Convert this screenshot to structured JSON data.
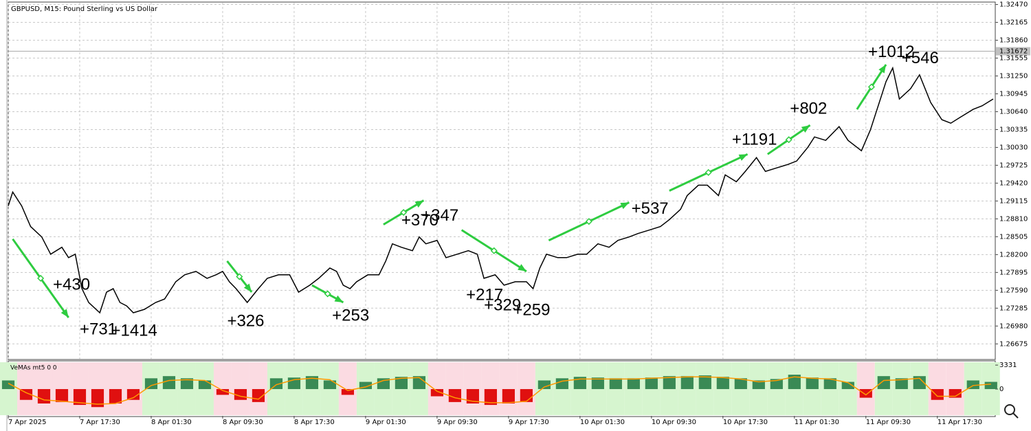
{
  "chart_data": [
    {
      "type": "line",
      "title": "GBPUSD, M15:  Pound Sterling vs US Dollar",
      "x": [
        0,
        2,
        6,
        10,
        15,
        19,
        24,
        27,
        30,
        33,
        36,
        41,
        44,
        47,
        50,
        53,
        56,
        61,
        66,
        70,
        75,
        79,
        84,
        89,
        93,
        96,
        99,
        102,
        107,
        112,
        116,
        121,
        126,
        130,
        135,
        139,
        144,
        147,
        150,
        153,
        156,
        161,
        166,
        169,
        172,
        176,
        181,
        184,
        187,
        192,
        196,
        201,
        206,
        210,
        213,
        218,
        222,
        227,
        232,
        235,
        238,
        241,
        246,
        250,
        255,
        259,
        264,
        269,
        273,
        278,
        282,
        287,
        292,
        296,
        301,
        304,
        309,
        313,
        318,
        321,
        326,
        330,
        335,
        339,
        344,
        349,
        353,
        358,
        361,
        366,
        372,
        376,
        382,
        386,
        390,
        393,
        396,
        399,
        404,
        408,
        413,
        418,
        422,
        427,
        432,
        436,
        441
      ],
      "values": [
        1.29031,
        1.29267,
        1.29031,
        1.28678,
        1.28501,
        1.28207,
        1.28325,
        1.28148,
        1.28207,
        1.27618,
        1.27383,
        1.27206,
        1.27559,
        1.27618,
        1.27383,
        1.27324,
        1.27206,
        1.27265,
        1.27383,
        1.27441,
        1.27736,
        1.27854,
        1.27913,
        1.27795,
        1.27854,
        1.27913,
        1.27736,
        1.27618,
        1.27383,
        1.27618,
        1.27795,
        1.27854,
        1.27854,
        1.27559,
        1.27677,
        1.27795,
        1.27971,
        1.27913,
        1.27677,
        1.27618,
        1.27736,
        1.27854,
        1.27854,
        1.28089,
        1.28384,
        1.28325,
        1.28266,
        1.28501,
        1.28384,
        1.28442,
        1.28148,
        1.28207,
        1.28266,
        1.28207,
        1.27795,
        1.27854,
        1.27677,
        1.27736,
        1.27736,
        1.27618,
        1.27971,
        1.28207,
        1.28148,
        1.28148,
        1.28207,
        1.28207,
        1.28384,
        1.28325,
        1.28442,
        1.28501,
        1.2856,
        1.28619,
        1.28678,
        1.28796,
        1.28972,
        1.29208,
        1.29385,
        1.29385,
        1.29208,
        1.29561,
        1.29443,
        1.2962,
        1.29856,
        1.2962,
        1.29679,
        1.29738,
        1.29797,
        1.30032,
        1.30209,
        1.3015,
        1.30385,
        1.3015,
        1.29973,
        1.30327,
        1.30798,
        1.31151,
        1.31386,
        1.30857,
        1.31033,
        1.31269,
        1.30798,
        1.30503,
        1.30444,
        1.30562,
        1.3068,
        1.30739,
        1.30857
      ],
      "color": "#000000",
      "xlim": [
        0,
        441
      ],
      "ylim": [
        1.2642,
        1.325
      ],
      "yticks": [
        {
          "value": 1.3247,
          "label": "1.32470"
        },
        1.32165,
        {
          "value": 1.3186,
          "label": "1.31860"
        },
        1.31555,
        {
          "value": 1.3125,
          "label": "1.31250"
        },
        1.30945,
        {
          "value": 1.3064,
          "label": "1.30640"
        },
        1.30335,
        {
          "value": 1.3003,
          "label": "1.30030"
        },
        1.29725,
        {
          "value": 1.2942,
          "label": "1.29420"
        },
        1.29115,
        {
          "value": 1.2881,
          "label": "1.28810"
        },
        1.28505,
        {
          "value": 1.282,
          "label": "1.28200"
        },
        1.27895,
        {
          "value": 1.2759,
          "label": "1.27590"
        },
        1.27285,
        {
          "value": 1.2698,
          "label": "1.26980"
        },
        1.26675
      ],
      "grid": true,
      "current_price": 1.31672,
      "annotation_color": "#2ecc40",
      "annotations": [
        {
          "text": "+430",
          "x": 20,
          "y": 1.27677
        },
        {
          "text": "+731",
          "x": 32,
          "y": 1.26912
        },
        {
          "text": "+1414",
          "x": 46,
          "y": 1.26888
        },
        {
          "text": "+326",
          "x": 98,
          "y": 1.27053
        },
        {
          "text": "+253",
          "x": 145,
          "y": 1.27147
        },
        {
          "text": "+370",
          "x": 176,
          "y": 1.28772
        },
        {
          "text": "+347",
          "x": 185,
          "y": 1.28855
        },
        {
          "text": "+217",
          "x": 205,
          "y": 1.275
        },
        {
          "text": "+329",
          "x": 213,
          "y": 1.27324
        },
        {
          "text": "+259",
          "x": 226,
          "y": 1.27241
        },
        {
          "text": "+537",
          "x": 279,
          "y": 1.28972
        },
        {
          "text": "+1191",
          "x": 324,
          "y": 1.3015
        },
        {
          "text": "+802",
          "x": 350,
          "y": 1.3068
        },
        {
          "text": "+1012",
          "x": 385,
          "y": 1.31646
        },
        {
          "text": "+546",
          "x": 400,
          "y": 1.3154
        }
      ],
      "arrows": [
        {
          "x1": 2,
          "y1": 1.28466,
          "x2": 27,
          "y2": 1.27124
        },
        {
          "x1": 98,
          "y1": 1.28089,
          "x2": 109,
          "y2": 1.27559
        },
        {
          "x1": 136,
          "y1": 1.27677,
          "x2": 150,
          "y2": 1.27383
        },
        {
          "x1": 168,
          "y1": 1.28713,
          "x2": 186,
          "y2": 1.29125
        },
        {
          "x1": 203,
          "y1": 1.28619,
          "x2": 232,
          "y2": 1.27913
        },
        {
          "x1": 242,
          "y1": 1.28442,
          "x2": 278,
          "y2": 1.2909
        },
        {
          "x1": 296,
          "y1": 1.2929,
          "x2": 331,
          "y2": 1.29914
        },
        {
          "x1": 340,
          "y1": 1.29914,
          "x2": 359,
          "y2": 1.30409
        },
        {
          "x1": 380,
          "y1": 1.3068,
          "x2": 393,
          "y2": 1.31445
        }
      ]
    },
    {
      "type": "bar",
      "title": "VeMAs mt5 0 0",
      "x": [
        0,
        8,
        16,
        24,
        32,
        40,
        48,
        56,
        64,
        72,
        80,
        88,
        96,
        104,
        112,
        120,
        128,
        136,
        144,
        152,
        160,
        168,
        176,
        184,
        192,
        200,
        208,
        216,
        224,
        232,
        240,
        248,
        256,
        264,
        272,
        280,
        288,
        296,
        304,
        312,
        320,
        328,
        336,
        344,
        352,
        360,
        368,
        376,
        384,
        392,
        400,
        408,
        416,
        424,
        432,
        440
      ],
      "series": [
        {
          "values": [
            1200,
            -1500,
            -2000,
            -1800,
            -2200,
            -2500,
            -2000,
            -1500,
            1500,
            1800,
            1500,
            1200,
            -800,
            -1500,
            -1800,
            1500,
            1600,
            1800,
            1200,
            -800,
            1000,
            1500,
            1700,
            1800,
            -1000,
            -1800,
            -2000,
            -2200,
            -2000,
            -1800,
            1200,
            1500,
            1700,
            1600,
            1500,
            1500,
            1600,
            1800,
            1800,
            1900,
            1700,
            1500,
            1200,
            1400,
            2000,
            1600,
            1500,
            1000,
            -1200,
            1800,
            1500,
            1800,
            -1500,
            -1200,
            1200,
            1000
          ],
          "color": "#3a8a55",
          "negative_color": "#e01010"
        },
        {
          "values": [
            800,
            -500,
            -1500,
            -1700,
            -1900,
            -2100,
            -2000,
            -1200,
            500,
            1200,
            1300,
            1200,
            -200,
            -1000,
            -1400,
            600,
            1300,
            1500,
            1300,
            -200,
            300,
            1200,
            1500,
            1600,
            -300,
            -1200,
            -1700,
            -1900,
            -1900,
            -1700,
            300,
            1100,
            1400,
            1400,
            1400,
            1400,
            1500,
            1600,
            1700,
            1700,
            1600,
            1400,
            1000,
            1200,
            1700,
            1500,
            1400,
            900,
            -800,
            1200,
            1300,
            1500,
            -1000,
            -1000,
            500,
            700
          ],
          "color": "#ff9900",
          "style": "line"
        }
      ],
      "xlim": [
        0,
        441
      ],
      "ylim": [
        -3720,
        3820
      ],
      "yticks": [
        3331,
        0
      ],
      "xticks": [
        {
          "value": 0,
          "label": "7 Apr 2025"
        },
        {
          "value": 32,
          "label": "7 Apr 17:30"
        },
        {
          "value": 64,
          "label": "8 Apr 01:30"
        },
        {
          "value": 96,
          "label": "8 Apr 09:30"
        },
        {
          "value": 128,
          "label": "8 Apr 17:30"
        },
        {
          "value": 160,
          "label": "9 Apr 01:30"
        },
        {
          "value": 192,
          "label": "9 Apr 09:30"
        },
        {
          "value": 224,
          "label": "9 Apr 17:30"
        },
        {
          "value": 256,
          "label": "10 Apr 01:30"
        },
        {
          "value": 288,
          "label": "10 Apr 09:30"
        },
        {
          "value": 320,
          "label": "10 Apr 17:30"
        },
        {
          "value": 352,
          "label": "11 Apr 01:30"
        },
        {
          "value": 384,
          "label": "11 Apr 09:30"
        },
        {
          "value": 416,
          "label": "11 Apr 17:30"
        }
      ]
    }
  ]
}
